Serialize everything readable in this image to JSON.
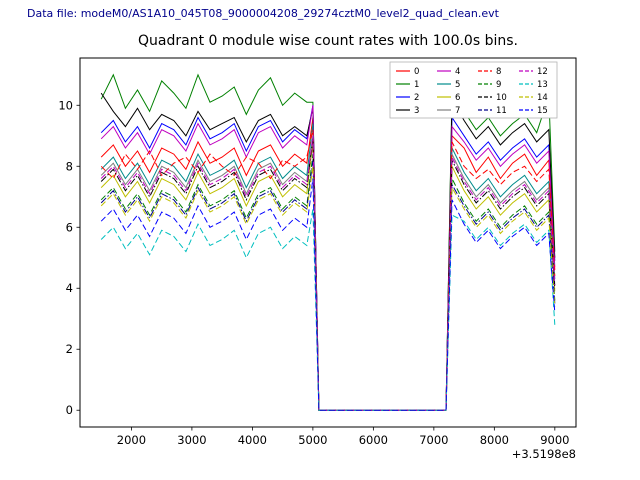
{
  "header": {
    "text": "Data file: modeM0/AS1A10_045T08_9000004208_29274cztM0_level2_quad_clean.evt",
    "color": "#00008b"
  },
  "title": "Quadrant 0 module wise count rates with 100.0s bins.",
  "axis": {
    "x_offset_label": "+3.5198e8",
    "xticks": [
      2000,
      3000,
      4000,
      5000,
      6000,
      7000,
      8000,
      9000
    ],
    "yticks": [
      0,
      2,
      4,
      6,
      8,
      10
    ],
    "xlim": [
      1150,
      9350
    ],
    "ylim": [
      -0.55,
      11.55
    ]
  },
  "chart_data": {
    "type": "line",
    "title": "Quadrant 0 module wise count rates with 100.0s bins.",
    "xlabel": "",
    "ylabel": "",
    "x_axis_offset": "+3.5198e8",
    "bin_size_s": 100.0,
    "legend": {
      "position": "upper right",
      "ncol": 4
    },
    "x": [
      1500,
      1700,
      1900,
      2100,
      2300,
      2500,
      2700,
      2900,
      3100,
      3300,
      3500,
      3700,
      3900,
      4100,
      4300,
      4500,
      4700,
      4900,
      5000,
      5100,
      7200,
      7300,
      7500,
      7700,
      7900,
      8100,
      8300,
      8500,
      8700,
      8900,
      9000
    ],
    "series": [
      {
        "name": "0",
        "color": "#ff0000",
        "dash": "solid",
        "values": [
          8.3,
          8.7,
          8.0,
          8.5,
          7.8,
          8.6,
          8.4,
          7.9,
          8.8,
          8.1,
          8.3,
          8.6,
          7.7,
          8.5,
          8.7,
          8.0,
          8.4,
          8.1,
          9.6,
          0,
          0,
          9.0,
          8.6,
          7.8,
          8.3,
          7.6,
          8.1,
          8.4,
          7.7,
          8.2,
          4.6
        ]
      },
      {
        "name": "1",
        "color": "#008000",
        "dash": "solid",
        "values": [
          10.2,
          11.0,
          9.9,
          10.5,
          9.8,
          10.8,
          10.4,
          9.9,
          11.0,
          10.1,
          10.3,
          10.6,
          9.7,
          10.5,
          10.9,
          10.0,
          10.4,
          10.1,
          10.1,
          0,
          0,
          10.4,
          9.8,
          9.2,
          9.6,
          9.0,
          9.4,
          9.7,
          9.1,
          10.3,
          5.2
        ]
      },
      {
        "name": "2",
        "color": "#0000ff",
        "dash": "solid",
        "values": [
          9.1,
          9.5,
          8.8,
          9.3,
          8.6,
          9.4,
          9.2,
          8.7,
          9.6,
          8.9,
          9.1,
          9.4,
          8.5,
          9.3,
          9.5,
          8.8,
          9.2,
          8.9,
          10.0,
          0,
          0,
          9.6,
          9.0,
          8.4,
          8.8,
          8.2,
          8.6,
          8.9,
          8.3,
          8.7,
          4.9
        ]
      },
      {
        "name": "3",
        "color": "#000000",
        "dash": "solid",
        "values": [
          10.4,
          9.8,
          9.3,
          9.9,
          9.2,
          9.7,
          9.5,
          9.0,
          9.8,
          9.2,
          9.4,
          9.6,
          8.8,
          9.5,
          9.7,
          9.0,
          9.3,
          9.0,
          9.9,
          0,
          0,
          10.2,
          9.5,
          8.9,
          9.3,
          8.7,
          9.1,
          9.4,
          8.8,
          9.2,
          5.0
        ]
      },
      {
        "name": "4",
        "color": "#bf00bf",
        "dash": "solid",
        "values": [
          8.9,
          9.3,
          8.6,
          9.1,
          8.4,
          9.2,
          9.0,
          8.5,
          9.4,
          8.7,
          8.9,
          9.2,
          8.3,
          9.1,
          9.3,
          8.6,
          9.0,
          8.7,
          10.0,
          0,
          0,
          9.3,
          8.8,
          8.2,
          8.6,
          8.0,
          8.4,
          8.7,
          8.1,
          8.5,
          4.7
        ]
      },
      {
        "name": "5",
        "color": "#008b8b",
        "dash": "solid",
        "values": [
          7.9,
          8.3,
          7.6,
          8.1,
          7.4,
          8.2,
          8.0,
          7.5,
          8.4,
          7.7,
          7.9,
          8.2,
          7.3,
          8.1,
          8.3,
          7.6,
          8.0,
          7.7,
          9.4,
          0,
          0,
          8.6,
          7.8,
          7.2,
          7.6,
          7.0,
          7.4,
          7.7,
          7.1,
          7.5,
          4.3
        ]
      },
      {
        "name": "6",
        "color": "#bfbf00",
        "dash": "solid",
        "values": [
          7.3,
          7.7,
          7.0,
          7.5,
          6.8,
          7.6,
          7.4,
          6.9,
          7.8,
          7.1,
          7.3,
          7.6,
          6.7,
          7.5,
          7.7,
          7.0,
          7.4,
          7.1,
          8.8,
          0,
          0,
          8.0,
          7.2,
          6.6,
          7.0,
          6.4,
          6.8,
          7.1,
          6.5,
          6.9,
          3.9
        ]
      },
      {
        "name": "7",
        "color": "#7f7f7f",
        "dash": "solid",
        "values": [
          7.7,
          8.1,
          7.4,
          7.9,
          7.2,
          8.0,
          7.8,
          7.3,
          8.2,
          7.5,
          7.7,
          8.0,
          7.1,
          7.9,
          8.1,
          7.4,
          7.8,
          7.5,
          9.0,
          0,
          0,
          8.4,
          7.6,
          7.0,
          7.4,
          6.8,
          7.2,
          7.5,
          6.9,
          7.3,
          4.1
        ]
      },
      {
        "name": "8",
        "color": "#ff0000",
        "dash": "dashed",
        "values": [
          8.0,
          7.6,
          8.4,
          7.9,
          8.5,
          7.7,
          8.1,
          8.3,
          7.8,
          8.4,
          8.0,
          7.7,
          8.3,
          8.1,
          7.6,
          8.2,
          8.0,
          8.3,
          9.2,
          0,
          0,
          8.8,
          8.0,
          7.6,
          7.9,
          7.4,
          7.8,
          8.0,
          7.5,
          7.9,
          4.4
        ]
      },
      {
        "name": "9",
        "color": "#008000",
        "dash": "dashed",
        "values": [
          6.9,
          7.3,
          6.6,
          7.1,
          6.4,
          7.2,
          7.0,
          6.5,
          7.4,
          6.7,
          6.9,
          7.2,
          6.3,
          7.1,
          7.3,
          6.6,
          7.0,
          6.7,
          8.4,
          0,
          0,
          7.6,
          6.8,
          6.2,
          6.6,
          6.0,
          6.4,
          6.7,
          6.1,
          6.5,
          3.6
        ]
      },
      {
        "name": "10",
        "color": "#000000",
        "dash": "dashdot",
        "values": [
          7.5,
          7.9,
          7.2,
          7.7,
          7.0,
          7.8,
          7.6,
          7.1,
          8.0,
          7.3,
          7.5,
          7.8,
          6.9,
          7.7,
          7.9,
          7.2,
          7.6,
          7.3,
          8.9,
          0,
          0,
          8.2,
          7.4,
          6.8,
          7.2,
          6.6,
          7.0,
          7.3,
          6.7,
          7.1,
          4.0
        ]
      },
      {
        "name": "11",
        "color": "#00008b",
        "dash": "dashdot",
        "values": [
          6.8,
          7.2,
          6.5,
          7.0,
          6.3,
          7.1,
          6.9,
          6.4,
          7.3,
          6.6,
          6.8,
          7.1,
          6.2,
          7.0,
          7.2,
          6.5,
          6.9,
          6.6,
          8.2,
          0,
          0,
          7.4,
          6.7,
          6.1,
          6.5,
          5.9,
          6.3,
          6.6,
          6.0,
          6.4,
          3.5
        ]
      },
      {
        "name": "12",
        "color": "#bf00bf",
        "dash": "dashed",
        "values": [
          7.6,
          8.0,
          7.3,
          7.8,
          7.1,
          7.9,
          7.7,
          7.2,
          8.1,
          7.4,
          7.6,
          7.9,
          7.0,
          7.8,
          8.0,
          7.3,
          7.7,
          7.4,
          9.0,
          0,
          0,
          8.3,
          7.5,
          6.9,
          7.3,
          6.7,
          7.1,
          7.4,
          6.8,
          7.2,
          4.1
        ]
      },
      {
        "name": "13",
        "color": "#00bfbf",
        "dash": "dashed",
        "values": [
          5.6,
          6.0,
          5.3,
          5.8,
          5.1,
          5.9,
          5.7,
          5.2,
          6.1,
          5.4,
          5.6,
          5.9,
          5.0,
          5.8,
          6.0,
          5.3,
          5.7,
          5.4,
          6.6,
          0,
          0,
          6.4,
          6.2,
          5.6,
          6.0,
          5.4,
          5.8,
          6.1,
          5.5,
          5.9,
          2.8
        ]
      },
      {
        "name": "14",
        "color": "#bfbf00",
        "dash": "dashed",
        "values": [
          6.7,
          7.1,
          6.4,
          6.9,
          6.2,
          7.0,
          6.8,
          6.3,
          7.2,
          6.5,
          6.7,
          7.0,
          6.1,
          6.9,
          7.1,
          6.4,
          6.8,
          6.5,
          8.0,
          0,
          0,
          7.3,
          6.6,
          6.0,
          6.4,
          5.8,
          6.2,
          6.5,
          5.9,
          6.3,
          3.4
        ]
      },
      {
        "name": "15",
        "color": "#0000ff",
        "dash": "dashed",
        "values": [
          6.2,
          6.6,
          5.9,
          6.4,
          5.7,
          6.5,
          6.3,
          5.8,
          6.7,
          6.0,
          6.2,
          6.5,
          5.6,
          6.4,
          6.6,
          5.9,
          6.3,
          6.0,
          7.6,
          0,
          0,
          6.9,
          6.1,
          5.5,
          5.9,
          5.3,
          5.7,
          6.0,
          5.4,
          5.8,
          3.2
        ]
      }
    ]
  }
}
